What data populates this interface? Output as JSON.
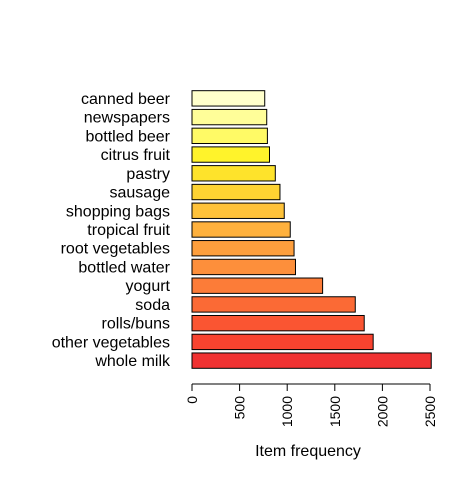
{
  "chart_data": {
    "type": "bar",
    "orientation": "horizontal",
    "categories": [
      "whole milk",
      "other vegetables",
      "rolls/buns",
      "soda",
      "yogurt",
      "bottled water",
      "root vegetables",
      "tropical fruit",
      "shopping bags",
      "sausage",
      "pastry",
      "citrus fruit",
      "bottled beer",
      "newspapers",
      "canned beer"
    ],
    "values": [
      2513,
      1903,
      1809,
      1715,
      1372,
      1087,
      1072,
      1032,
      969,
      924,
      875,
      814,
      792,
      785,
      764
    ],
    "colors": [
      "#F03232",
      "#F8432F",
      "#FA5532",
      "#FB6A35",
      "#FC7C38",
      "#FD8F3B",
      "#FE9F3D",
      "#FEB13E",
      "#FEC23A",
      "#FED332",
      "#FEE32B",
      "#FFF32B",
      "#FFFA66",
      "#FFFE99",
      "#FFFFCC"
    ],
    "xlabel": "Item frequency",
    "xlim": [
      0,
      2500
    ],
    "xticks": [
      0,
      500,
      1000,
      1500,
      2000,
      2500
    ],
    "grid": false
  }
}
